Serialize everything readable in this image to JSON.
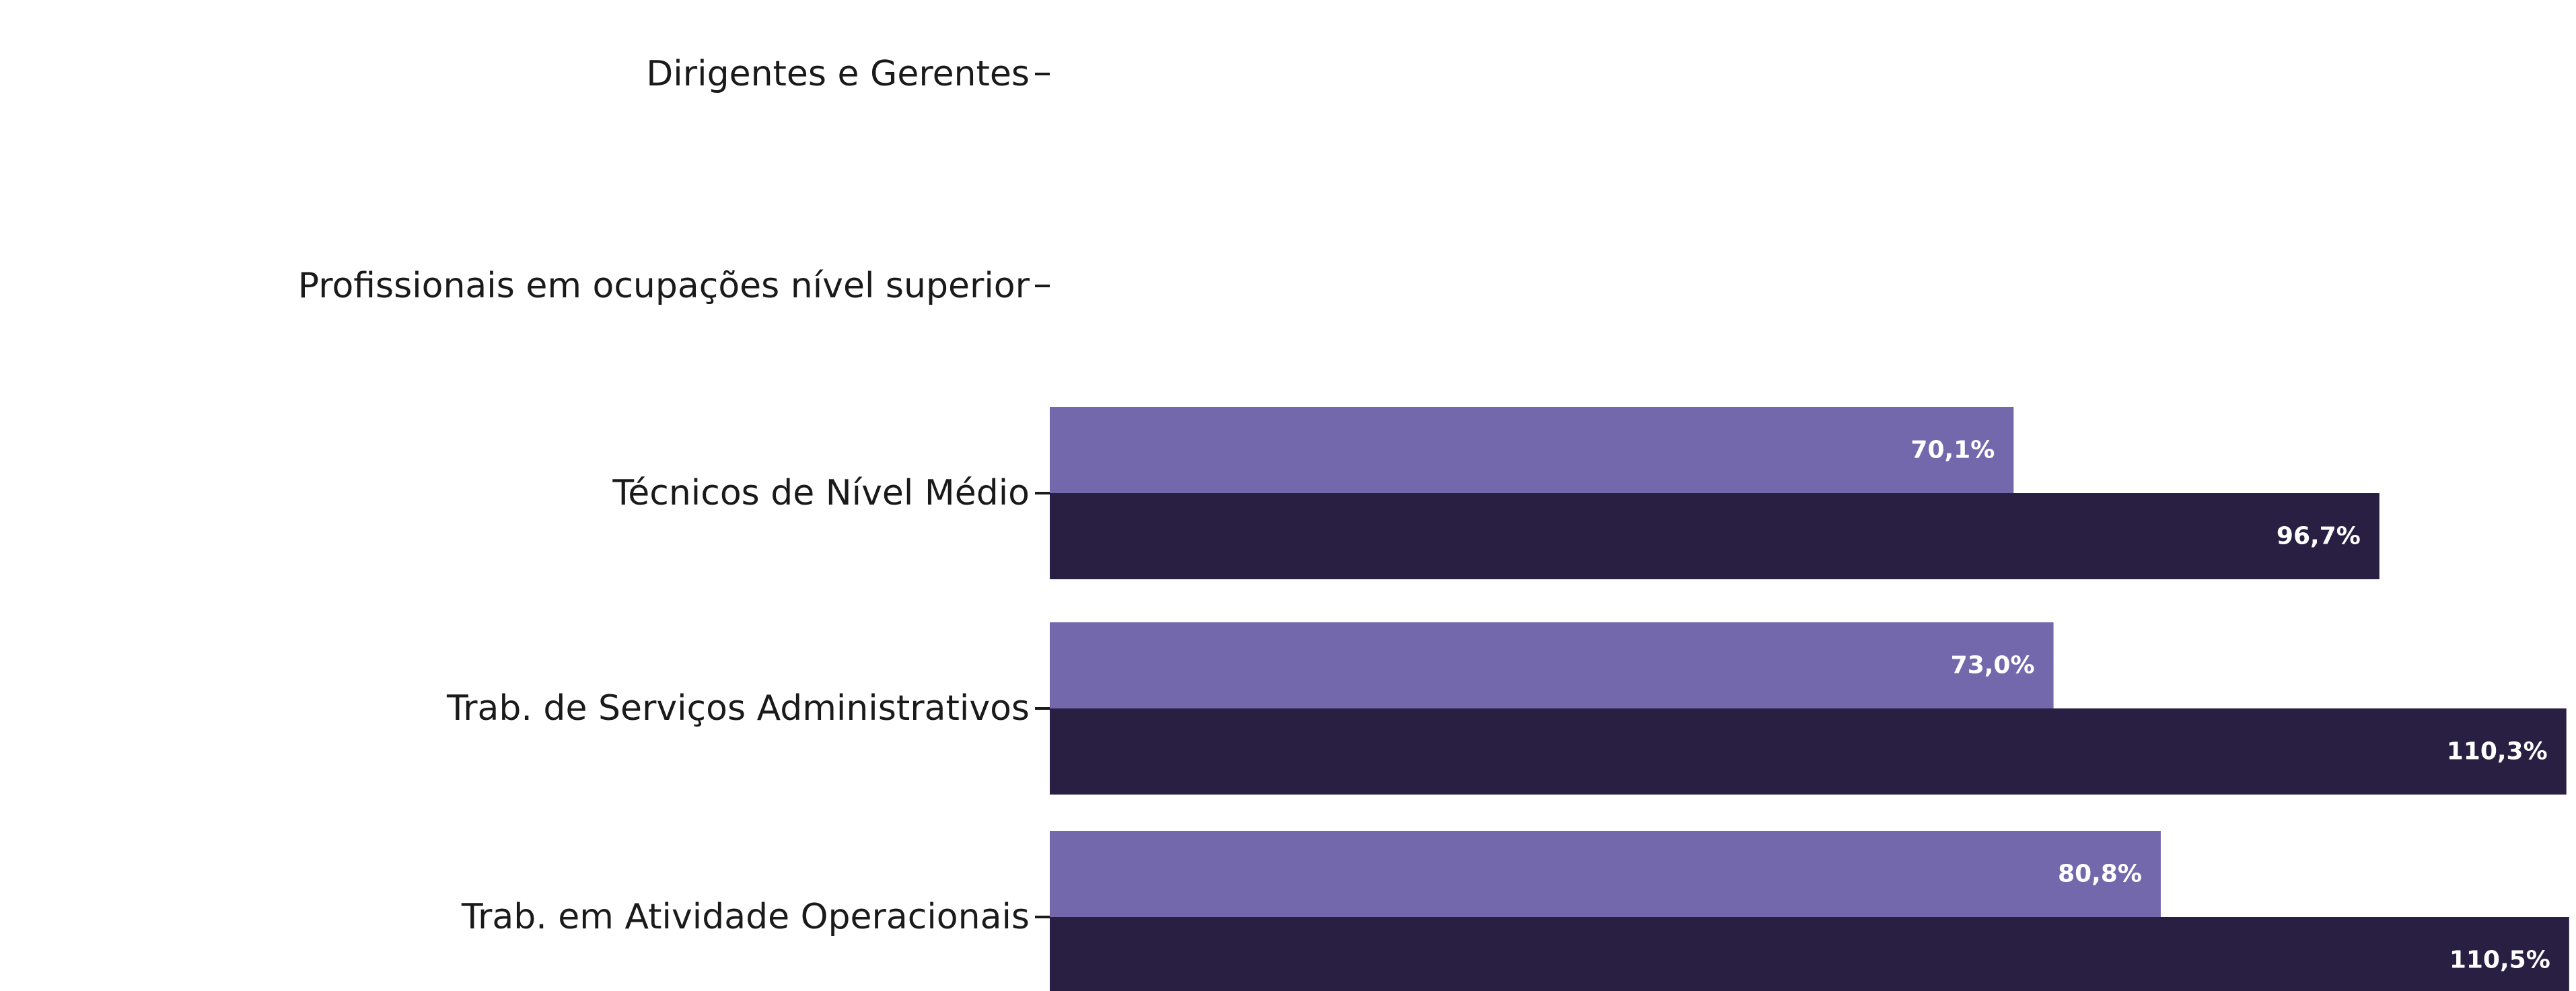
{
  "chart_data": {
    "type": "bar",
    "orientation": "horizontal",
    "categories": [
      "Dirigentes e Gerentes",
      "Profissionais em ocupações nível superior",
      "Técnicos de Nível Médio",
      "Trab. de Serviços Administrativos",
      "Trab. em Atividade Operacionais"
    ],
    "series": [
      {
        "color": "#7468ad",
        "values": [
          null,
          null,
          70.1,
          73.0,
          80.8
        ],
        "labels": [
          "",
          "",
          "70,1%",
          "73,0%",
          "80,8%"
        ]
      },
      {
        "color": "#281f42",
        "values": [
          null,
          null,
          96.7,
          110.3,
          110.5
        ],
        "labels": [
          "",
          "",
          "96,7%",
          "110,3%",
          "110,5%"
        ]
      }
    ],
    "xlim": [
      0,
      111
    ],
    "grid": false,
    "legend": "none"
  }
}
